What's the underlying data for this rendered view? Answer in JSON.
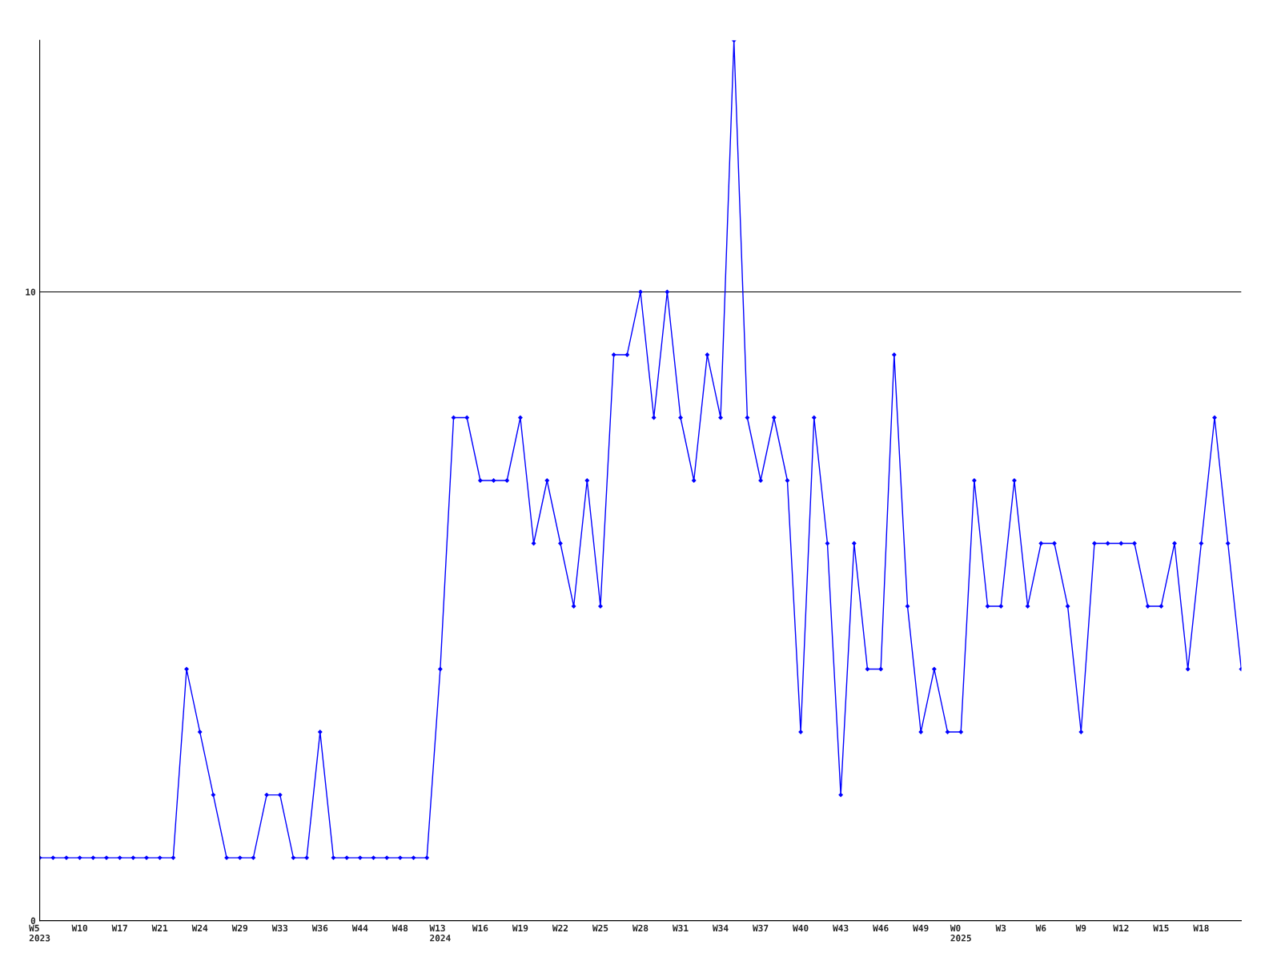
{
  "chart_data": {
    "type": "line",
    "categories": [
      "W5\n2023",
      null,
      null,
      "W10",
      null,
      null,
      "W17",
      null,
      null,
      "W21",
      null,
      null,
      "W24",
      null,
      null,
      "W29",
      null,
      null,
      "W33",
      null,
      null,
      "W36",
      null,
      null,
      "W44",
      null,
      null,
      "W48",
      null,
      null,
      "W13\n2024",
      null,
      null,
      "W16",
      null,
      null,
      "W19",
      null,
      null,
      "W22",
      null,
      null,
      "W25",
      null,
      null,
      "W28",
      null,
      null,
      "W31",
      null,
      null,
      "W34",
      null,
      null,
      "W37",
      null,
      null,
      "W40",
      null,
      null,
      "W43",
      null,
      null,
      "W46",
      null,
      null,
      "W49",
      null,
      null,
      "W0\n2025",
      null,
      null,
      "W3",
      null,
      null,
      "W6",
      null,
      null,
      "W9",
      null,
      null,
      "W12",
      null,
      null,
      "W15",
      null,
      null,
      "W18",
      null,
      null,
      null
    ],
    "series": [
      {
        "color": "#0000ff",
        "values": [
          1,
          1,
          1,
          1,
          1,
          1,
          1,
          1,
          1,
          1,
          1,
          4,
          3,
          2,
          1,
          1,
          1,
          2,
          2,
          1,
          1,
          3,
          1,
          1,
          1,
          1,
          1,
          1,
          1,
          1,
          4,
          8,
          8,
          7,
          7,
          7,
          8,
          6,
          7,
          6,
          5,
          7,
          5,
          9,
          9,
          10,
          8,
          10,
          8,
          7,
          9,
          8,
          14,
          8,
          7,
          8,
          7,
          3,
          8,
          6,
          2,
          6,
          4,
          4,
          9,
          5,
          3,
          4,
          3,
          3,
          7,
          5,
          5,
          7,
          5,
          6,
          6,
          5,
          3,
          6,
          6,
          6,
          6,
          5,
          5,
          6,
          4,
          6,
          8,
          6,
          4
        ]
      }
    ],
    "ylim": [
      0,
      14
    ],
    "yticks": [
      0,
      10
    ],
    "grid": "y",
    "marker": "diamond",
    "line_style": "solid"
  }
}
